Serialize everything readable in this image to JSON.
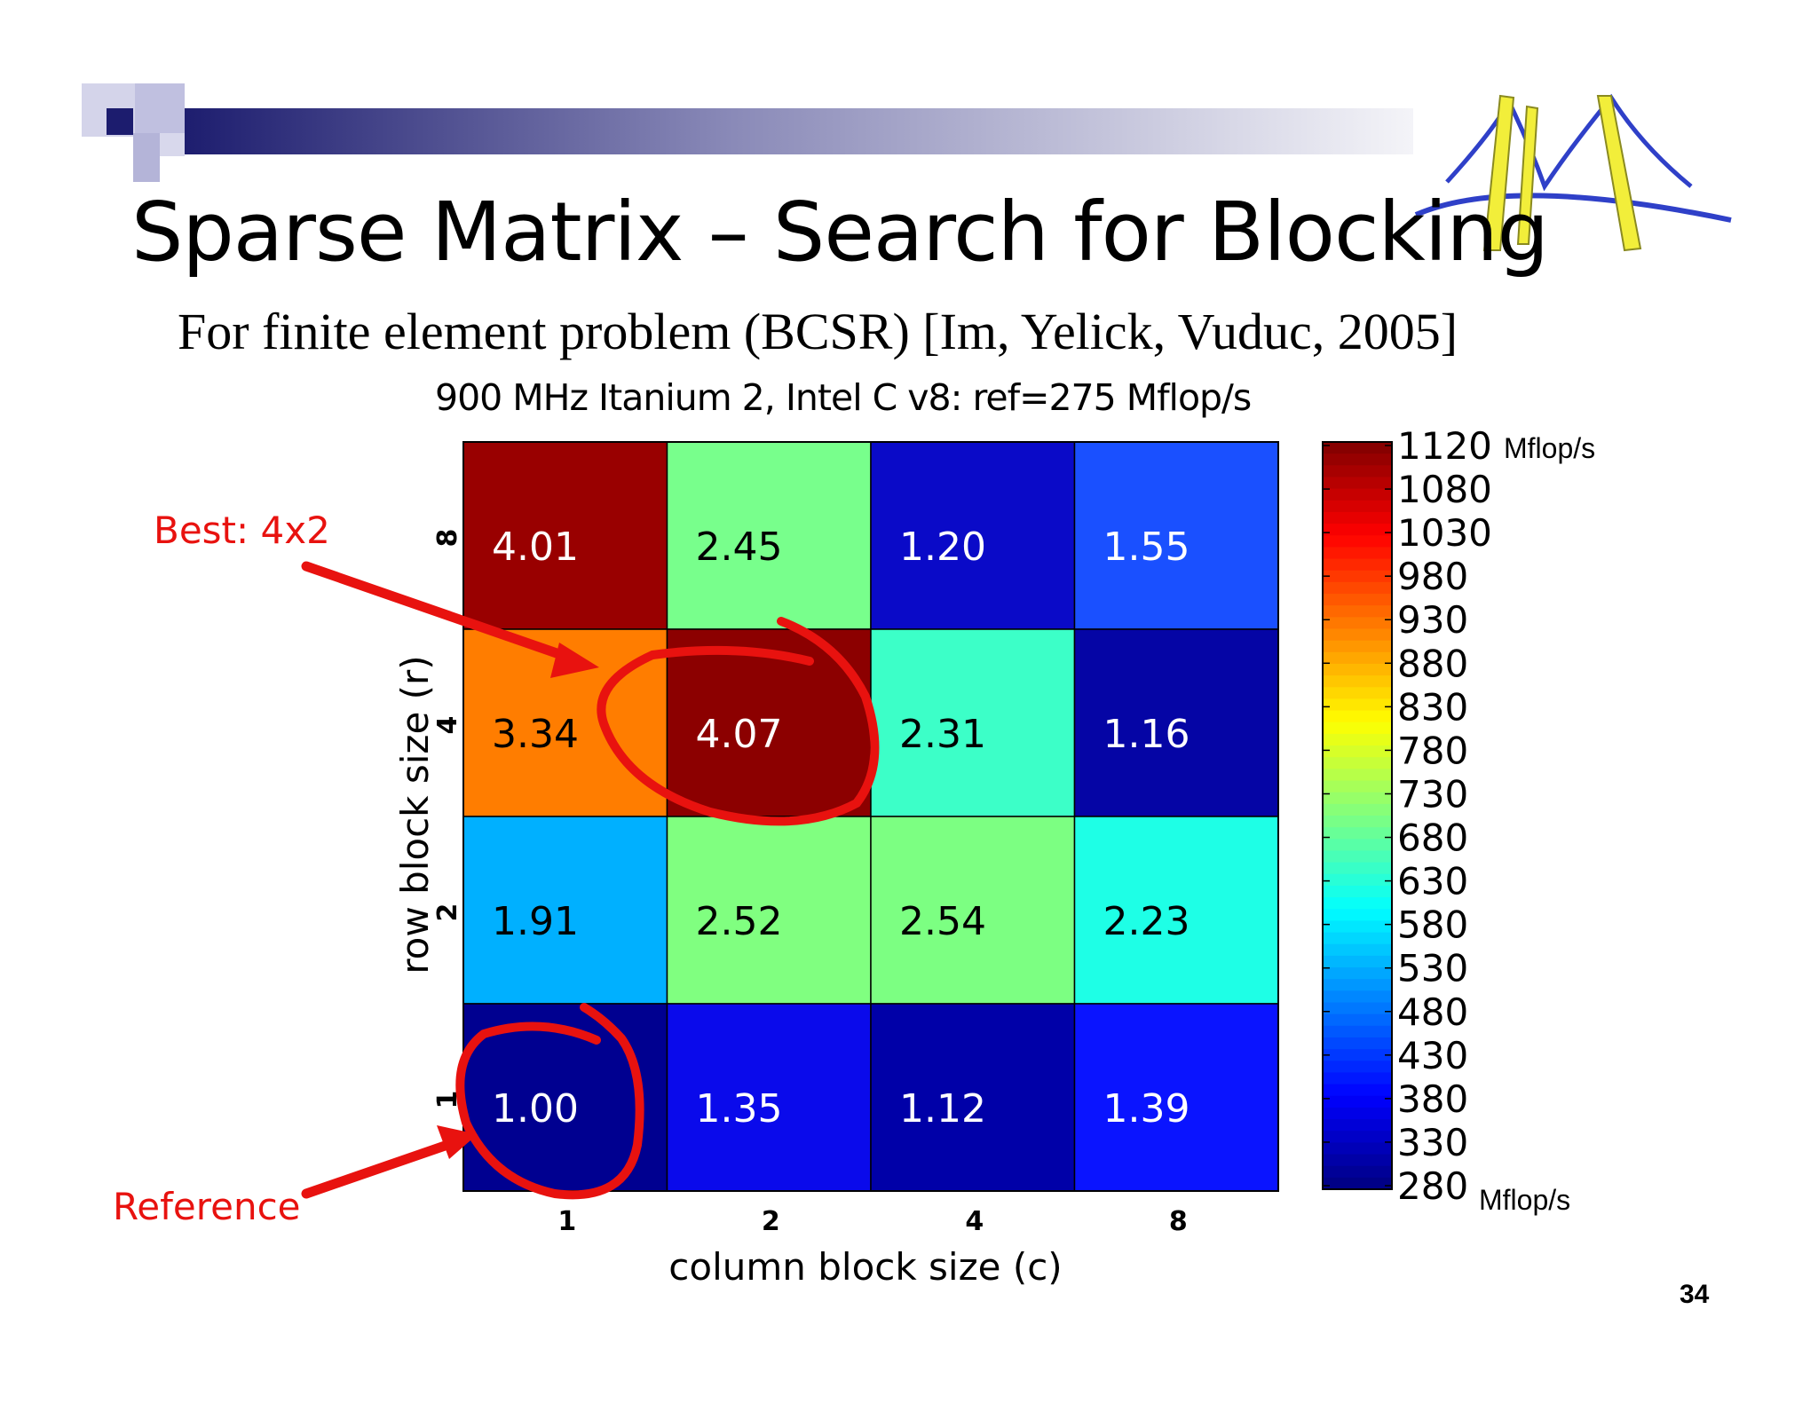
{
  "slide": {
    "title": "Sparse Matrix – Search for Blocking",
    "subtitle": "For finite element problem (BCSR) [Im, Yelick, Vuduc, 2005]",
    "page_number": "34"
  },
  "annotations": {
    "best_label": "Best: 4x2",
    "reference_label": "Reference"
  },
  "colors": {
    "annotation_red": "#e8120f",
    "banner_navy": "#1c1c6e",
    "logo_yellow": "#f2ee3a",
    "logo_blue": "#2f40c8"
  },
  "chart_data": {
    "type": "heatmap",
    "title": "900 MHz Itanium 2, Intel C v8: ref=275 Mflop/s",
    "xlabel": "column block size (c)",
    "ylabel": "row block size (r)",
    "x_categories": [
      "1",
      "2",
      "4",
      "8"
    ],
    "y_categories": [
      "8",
      "4",
      "2",
      "1"
    ],
    "values": [
      [
        4.01,
        2.45,
        1.2,
        1.55
      ],
      [
        3.34,
        4.07,
        2.31,
        1.16
      ],
      [
        1.91,
        2.52,
        2.54,
        2.23
      ],
      [
        1.0,
        1.35,
        1.12,
        1.39
      ]
    ],
    "value_labels": [
      [
        "4.01",
        "2.45",
        "1.20",
        "1.55"
      ],
      [
        "3.34",
        "4.07",
        "2.31",
        "1.16"
      ],
      [
        "1.91",
        "2.52",
        "2.54",
        "2.23"
      ],
      [
        "1.00",
        "1.35",
        "1.12",
        "1.39"
      ]
    ],
    "cell_colors": [
      [
        "#990000",
        "#78ff8c",
        "#0a0ac8",
        "#1a50ff"
      ],
      [
        "#ff7d00",
        "#8c0000",
        "#3cffc8",
        "#0505a5"
      ],
      [
        "#00b0ff",
        "#80ff80",
        "#7cff82",
        "#1effe6"
      ],
      [
        "#000090",
        "#0a0aeb",
        "#0000a8",
        "#0a14ff"
      ]
    ],
    "colorbar": {
      "ticks": [
        1120,
        1080,
        1030,
        980,
        930,
        880,
        830,
        780,
        730,
        680,
        630,
        580,
        530,
        480,
        430,
        380,
        330,
        280
      ],
      "min": 280,
      "max": 1120,
      "top_unit": "Mflop/s",
      "bottom_unit": "Mflop/s",
      "colormap": "jet"
    }
  }
}
